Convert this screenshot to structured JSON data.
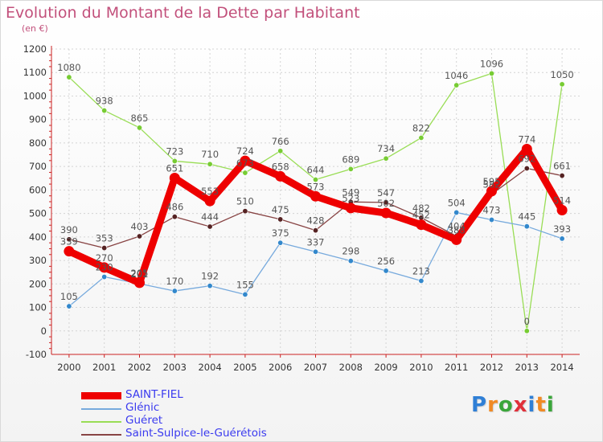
{
  "header": {
    "title": "Evolution du Montant de la Dette par Habitant",
    "subtitle": "(en €)"
  },
  "brand": {
    "text": "Proxiti",
    "letter_colors": [
      "#2f7fd6",
      "#f08a24",
      "#3aa63a",
      "#e0303a",
      "#2f7fd6",
      "#f08a24",
      "#3aa63a"
    ]
  },
  "chart_data": {
    "type": "line",
    "title": "Evolution du Montant de la Dette par Habitant",
    "subtitle": "(en €)",
    "xlabel": "",
    "ylabel": "",
    "x": [
      "2000",
      "2001",
      "2002",
      "2003",
      "2004",
      "2005",
      "2006",
      "2007",
      "2008",
      "2009",
      "2010",
      "2011",
      "2012",
      "2013",
      "2014"
    ],
    "ylim": [
      -100,
      1200
    ],
    "yticks": [
      -100,
      0,
      100,
      200,
      300,
      400,
      500,
      600,
      700,
      800,
      900,
      1000,
      1100,
      1200
    ],
    "grid": true,
    "legend_position": "bottom-left",
    "series": [
      {
        "name": "Guéret",
        "color": "#99dd55",
        "marker_color": "#77cc33",
        "values": [
          1080,
          938,
          865,
          723,
          710,
          673,
          766,
          644,
          689,
          734,
          822,
          1046,
          1096,
          0,
          1050
        ],
        "labels": [
          "1080",
          "938",
          "865",
          "723",
          "710",
          "673",
          "766",
          "644",
          "689",
          "734",
          "822",
          "1046",
          "1096",
          "0",
          "1050"
        ]
      },
      {
        "name": "Glénic",
        "color": "#77aadd",
        "marker_color": "#3388cc",
        "values": [
          105,
          230,
          201,
          170,
          192,
          155,
          375,
          337,
          298,
          256,
          213,
          504,
          473,
          445,
          393
        ],
        "labels": [
          "105",
          "230",
          "201",
          "170",
          "192",
          "155",
          "375",
          "337",
          "298",
          "256",
          "213",
          "504",
          "473",
          "445",
          "393"
        ]
      },
      {
        "name": "Saint-Sulpice-le-Guérétois",
        "color": "#884444",
        "marker_color": "#552222",
        "values": [
          390,
          353,
          403,
          486,
          444,
          510,
          475,
          428,
          549,
          547,
          482,
          404,
          582,
          692,
          661
        ],
        "labels": [
          "390",
          "353",
          "403",
          "486",
          "444",
          "510",
          "475",
          "428",
          "549",
          "547",
          "482",
          "404",
          "582",
          "692",
          "661"
        ]
      },
      {
        "name": "SAINT-FIEL",
        "color": "#ee0000",
        "marker_color": "#ee0000",
        "values": [
          339,
          270,
          205,
          651,
          553,
          724,
          658,
          573,
          523,
          502,
          452,
          388,
          595,
          774,
          514
        ],
        "labels": [
          "339",
          "270",
          "205",
          "651",
          "553",
          "724",
          "658",
          "573",
          "523",
          "502",
          "452",
          "388",
          "595",
          "774",
          "514"
        ]
      }
    ],
    "legend": [
      {
        "name": "SAINT-FIEL",
        "color": "#ee0000",
        "thick": true
      },
      {
        "name": "Glénic",
        "color": "#77aadd",
        "thick": false
      },
      {
        "name": "Guéret",
        "color": "#99dd55",
        "thick": false
      },
      {
        "name": "Saint-Sulpice-le-Guérétois",
        "color": "#884444",
        "thick": false
      }
    ]
  }
}
